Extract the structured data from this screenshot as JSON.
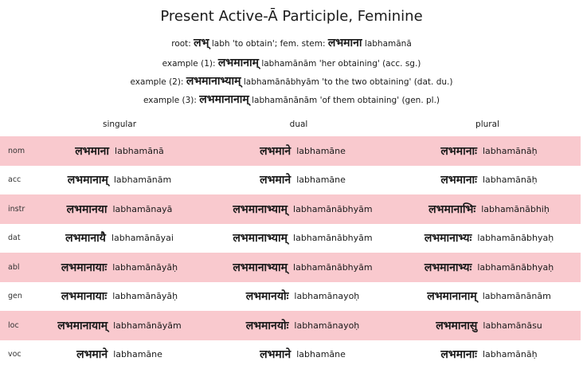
{
  "title": "Present Active-Ā Participle, Feminine",
  "root_line": {
    "prefix": "root:",
    "dev": "लभ्",
    "text": "labh 'to obtain'; fem. stem:",
    "dev2": "लभमाना",
    "text2": "labhamānā"
  },
  "examples": [
    {
      "prefix": "example (1):",
      "dev": "लभमानाम्",
      "text": "labhamānām 'her obtaining' (acc. sg.)"
    },
    {
      "prefix": "example (2):",
      "dev": "लभमानाभ्याम्",
      "text": "labhamānābhyām 'to the two obtaining' (dat. du.)"
    },
    {
      "prefix": "example (3):",
      "dev": "लभमानानाम्",
      "text": "labhamānānām 'of them obtaining' (gen. pl.)"
    }
  ],
  "columns": [
    "singular",
    "dual",
    "plural"
  ],
  "rows": [
    {
      "case": "nom",
      "shaded": true,
      "sg": {
        "dev": "लभमाना",
        "tr": "labhamānā"
      },
      "du": {
        "dev": "लभमाने",
        "tr": "labhamāne"
      },
      "pl": {
        "dev": "लभमानाः",
        "tr": "labhamānāḥ"
      }
    },
    {
      "case": "acc",
      "shaded": false,
      "sg": {
        "dev": "लभमानाम्",
        "tr": "labhamānām"
      },
      "du": {
        "dev": "लभमाने",
        "tr": "labhamāne"
      },
      "pl": {
        "dev": "लभमानाः",
        "tr": "labhamānāḥ"
      }
    },
    {
      "case": "instr",
      "shaded": true,
      "sg": {
        "dev": "लभमानया",
        "tr": "labhamānayā"
      },
      "du": {
        "dev": "लभमानाभ्याम्",
        "tr": "labhamānābhyām"
      },
      "pl": {
        "dev": "लभमानाभिः",
        "tr": "labhamānābhiḥ"
      }
    },
    {
      "case": "dat",
      "shaded": false,
      "sg": {
        "dev": "लभमानायै",
        "tr": "labhamānāyai"
      },
      "du": {
        "dev": "लभमानाभ्याम्",
        "tr": "labhamānābhyām"
      },
      "pl": {
        "dev": "लभमानाभ्यः",
        "tr": "labhamānābhyaḥ"
      }
    },
    {
      "case": "abl",
      "shaded": true,
      "sg": {
        "dev": "लभमानायाः",
        "tr": "labhamānāyāḥ"
      },
      "du": {
        "dev": "लभमानाभ्याम्",
        "tr": "labhamānābhyām"
      },
      "pl": {
        "dev": "लभमानाभ्यः",
        "tr": "labhamānābhyaḥ"
      }
    },
    {
      "case": "gen",
      "shaded": false,
      "sg": {
        "dev": "लभमानायाः",
        "tr": "labhamānāyāḥ"
      },
      "du": {
        "dev": "लभमानयोः",
        "tr": "labhamānayoḥ"
      },
      "pl": {
        "dev": "लभमानानाम्",
        "tr": "labhamānānām"
      }
    },
    {
      "case": "loc",
      "shaded": true,
      "sg": {
        "dev": "लभमानायाम्",
        "tr": "labhamānāyām"
      },
      "du": {
        "dev": "लभमानयोः",
        "tr": "labhamānayoḥ"
      },
      "pl": {
        "dev": "लभमानासु",
        "tr": "labhamānāsu"
      }
    },
    {
      "case": "voc",
      "shaded": false,
      "sg": {
        "dev": "लभमाने",
        "tr": "labhamāne"
      },
      "du": {
        "dev": "लभमाने",
        "tr": "labhamāne"
      },
      "pl": {
        "dev": "लभमानाः",
        "tr": "labhamānāḥ"
      }
    }
  ],
  "colors": {
    "shade": "#f9c9ce"
  }
}
